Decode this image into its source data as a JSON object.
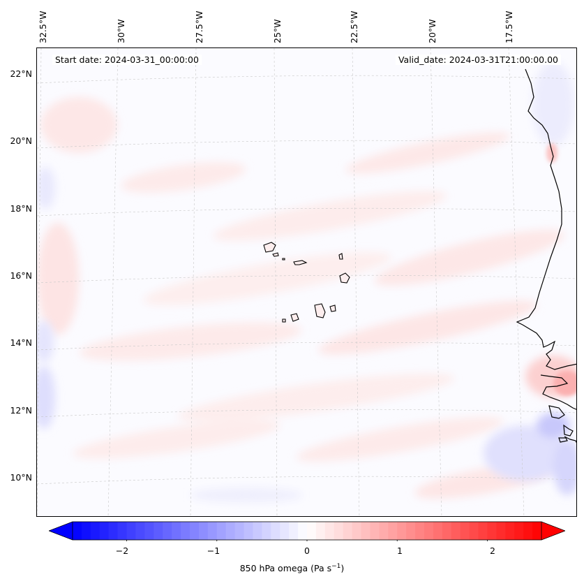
{
  "map": {
    "start_date": "Start date: 2024-03-31_00:00:00",
    "valid_date": "Valid_date: 2024-03-31T21:00:00.00",
    "lat_labels": [
      "22°N",
      "20°N",
      "18°N",
      "16°N",
      "14°N",
      "12°N",
      "10°N"
    ],
    "lon_labels": [
      "32.5°W",
      "30°W",
      "27.5°W",
      "25°W",
      "22.5°W",
      "20°W",
      "17.5°W"
    ],
    "features": [
      "cape-verde-islands",
      "west-africa-coastline"
    ]
  },
  "colorbar": {
    "label": "850 hPa omega (Pa s",
    "label_sup": "−1",
    "label_close": ")",
    "ticks": [
      "−2",
      "−1",
      "0",
      "1",
      "2"
    ],
    "tick_values": [
      -2,
      -1,
      0,
      1,
      2
    ],
    "range": [
      -2.6,
      2.6
    ],
    "colormap": "bwr",
    "low_color": "#0000ff",
    "mid_color": "#ffffff",
    "high_color": "#ff0000"
  }
}
